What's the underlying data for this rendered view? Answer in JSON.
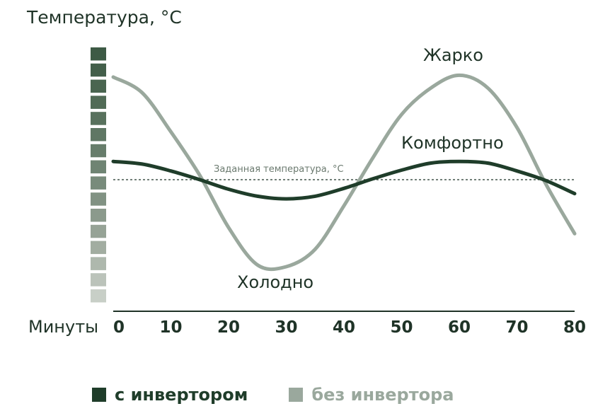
{
  "chart_data": {
    "type": "line",
    "ylabel": "Температура, °С",
    "xlabel": "Минуты",
    "x_ticks": [
      "0",
      "10",
      "20",
      "30",
      "40",
      "50",
      "60",
      "70",
      "80"
    ],
    "xlim": [
      0,
      80
    ],
    "ylim": [
      -1.3,
      1.3
    ],
    "series": [
      {
        "name": "с инвертором",
        "color": "#1f3d2a",
        "x": [
          0,
          5,
          10,
          15,
          20,
          25,
          30,
          35,
          40,
          45,
          50,
          55,
          60,
          65,
          70,
          75,
          80
        ],
        "y": [
          0.21,
          0.18,
          0.1,
          0.0,
          -0.11,
          -0.19,
          -0.22,
          -0.19,
          -0.1,
          0.01,
          0.11,
          0.19,
          0.21,
          0.19,
          0.1,
          -0.01,
          -0.16
        ]
      },
      {
        "name": "без инвертора",
        "color": "#9aa89d",
        "x": [
          0,
          5,
          10,
          15,
          20,
          25,
          30,
          35,
          40,
          45,
          50,
          55,
          60,
          65,
          70,
          75,
          80
        ],
        "y": [
          1.18,
          1.0,
          0.55,
          0.05,
          -0.55,
          -0.98,
          -1.0,
          -0.8,
          -0.3,
          0.25,
          0.75,
          1.05,
          1.2,
          1.05,
          0.6,
          -0.05,
          -0.62
        ]
      }
    ],
    "reference_line": {
      "label": "Заданная температура, °С",
      "y": 0
    },
    "annotations": {
      "hot": "Жарко",
      "comfort": "Комфортно",
      "cold": "Холодно"
    },
    "temperature_scale_colors": [
      "#3d5a45",
      "#435f4a",
      "#4a6550",
      "#516b56",
      "#58715d",
      "#5f7764",
      "#677d6b",
      "#6f8473",
      "#788b7b",
      "#819283",
      "#8b9a8c",
      "#96a396",
      "#a2ada1",
      "#aeb8ad",
      "#bbc3ba",
      "#c8cfc7"
    ]
  },
  "legend": [
    {
      "label": "с инвертором",
      "color": "#1f3d2a",
      "text_color": "#1f3d2a"
    },
    {
      "label": "без инвертора",
      "color": "#9aa89d",
      "text_color": "#9aa89d"
    }
  ]
}
